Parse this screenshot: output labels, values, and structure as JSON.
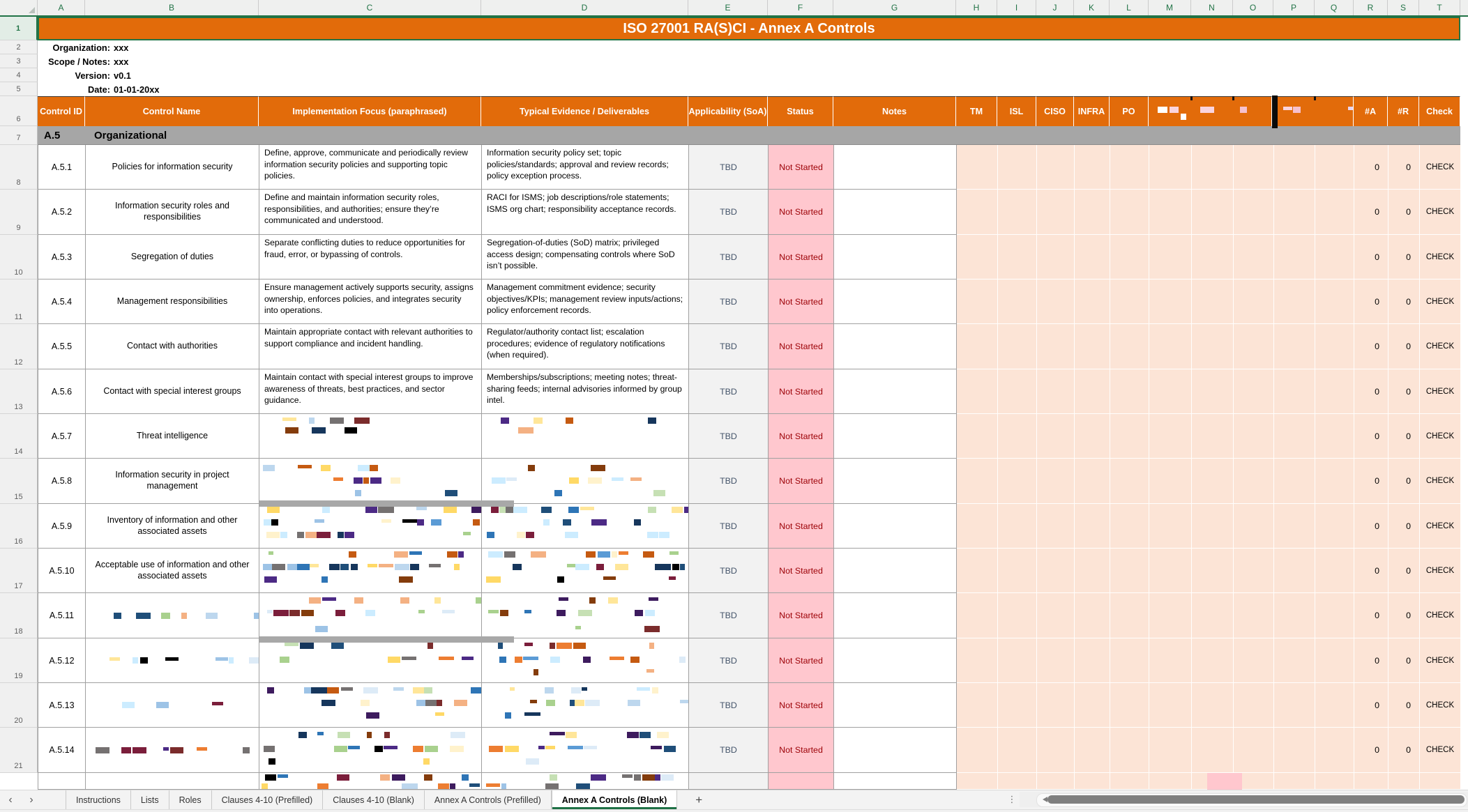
{
  "sheet": {
    "title": "ISO 27001 RA(S)CI - Annex A Controls",
    "column_letters": [
      "A",
      "B",
      "C",
      "D",
      "E",
      "F",
      "G",
      "H",
      "I",
      "J",
      "K",
      "L",
      "M",
      "N",
      "O",
      "P",
      "Q",
      "R",
      "S",
      "T"
    ],
    "row_numbers": [
      1,
      2,
      3,
      4,
      5,
      6,
      7,
      8,
      9,
      10,
      11,
      12,
      13,
      14,
      15,
      16,
      17,
      18,
      19,
      20,
      21
    ]
  },
  "meta": [
    {
      "label": "Organization:",
      "value": "xxx"
    },
    {
      "label": "Scope / Notes:",
      "value": "xxx"
    },
    {
      "label": "Version:",
      "value": "v0.1"
    },
    {
      "label": "Date:",
      "value": "01-01-20xx"
    }
  ],
  "table": {
    "headers": [
      {
        "key": "A",
        "label": "Control ID"
      },
      {
        "key": "B",
        "label": "Control Name"
      },
      {
        "key": "C",
        "label": "Implementation Focus (paraphrased)"
      },
      {
        "key": "D",
        "label": "Typical Evidence / Deliverables"
      },
      {
        "key": "E",
        "label": "Applicability (SoA)"
      },
      {
        "key": "F",
        "label": "Status"
      },
      {
        "key": "G",
        "label": "Notes"
      },
      {
        "key": "TM",
        "label": "TM"
      },
      {
        "key": "ISL",
        "label": "ISL"
      },
      {
        "key": "CISO",
        "label": "CISO"
      },
      {
        "key": "INFRA",
        "label": "INFRA"
      },
      {
        "key": "PO",
        "label": "PO"
      },
      {
        "key": "G1",
        "label": "",
        "corrupted": true
      },
      {
        "key": "G2",
        "label": "",
        "corrupted": true
      },
      {
        "key": "R",
        "label": "#A"
      },
      {
        "key": "S",
        "label": "#R"
      },
      {
        "key": "T",
        "label": "Check"
      }
    ],
    "section": {
      "id": "A.5",
      "name": "Organizational"
    },
    "row_defaults": {
      "soa": "TBD",
      "status": "Not Started",
      "notes": "",
      "count_a": "0",
      "count_r": "0",
      "check": "CHECK"
    },
    "controls": [
      {
        "id": "A.5.1",
        "name": "Policies for information security",
        "focus": "Define, approve, communicate and periodically review information security policies and supporting topic policies.",
        "evidence": "Information security policy set; topic policies/standards; approval and review records; policy exception process."
      },
      {
        "id": "A.5.2",
        "name": "Information security roles and responsibilities",
        "focus": "Define and maintain information security roles, responsibilities, and authorities; ensure they’re communicated and understood.",
        "evidence": "RACI for ISMS; job descriptions/role statements; ISMS org chart; responsibility acceptance records."
      },
      {
        "id": "A.5.3",
        "name": "Segregation of duties",
        "focus": "Separate conflicting duties to reduce opportunities for fraud, error, or bypassing of controls.",
        "evidence": "Segregation-of-duties (SoD) matrix; privileged access design; compensating controls where SoD isn’t possible."
      },
      {
        "id": "A.5.4",
        "name": "Management responsibilities",
        "focus": "Ensure management actively supports security, assigns ownership, enforces policies, and integrates security into operations.",
        "evidence": "Management commitment evidence; security objectives/KPIs; management review inputs/actions; policy enforcement records."
      },
      {
        "id": "A.5.5",
        "name": "Contact with authorities",
        "focus": "Maintain appropriate contact with relevant authorities to support compliance and incident handling.",
        "evidence": "Regulator/authority contact list; escalation procedures; evidence of regulatory notifications (when required)."
      },
      {
        "id": "A.5.6",
        "name": "Contact with special interest groups",
        "focus": "Maintain contact with special interest groups to improve awareness of threats, best practices, and sector guidance.",
        "evidence": "Memberships/subscriptions; meeting notes; threat-sharing feeds; internal advisories informed by group intel."
      },
      {
        "id": "A.5.7",
        "name": "Threat intelligence",
        "focus_corrupted": true,
        "evidence_corrupted": true
      },
      {
        "id": "A.5.8",
        "name": "Information security in project management",
        "focus_corrupted": true,
        "evidence_corrupted": true
      },
      {
        "id": "A.5.9",
        "name": "Inventory of information and other associated assets",
        "focus_corrupted": true,
        "evidence_corrupted": true
      },
      {
        "id": "A.5.10",
        "name": "Acceptable use of information and other associated assets",
        "focus_corrupted": true,
        "evidence_corrupted": true
      },
      {
        "id": "A.5.11",
        "name_corrupted": true,
        "focus_corrupted": true,
        "evidence_corrupted": true
      },
      {
        "id": "A.5.12",
        "name_corrupted": true,
        "focus_corrupted": true,
        "evidence_corrupted": true
      },
      {
        "id": "A.5.13",
        "name_corrupted": true,
        "focus_corrupted": true,
        "evidence_corrupted": true
      },
      {
        "id": "A.5.14",
        "name_corrupted": true,
        "focus_corrupted": true,
        "evidence_corrupted": true
      }
    ],
    "partial_bottom_row_corrupted": true
  },
  "tabs": {
    "items": [
      {
        "label": "Instructions",
        "active": false
      },
      {
        "label": "Lists",
        "active": false
      },
      {
        "label": "Roles",
        "active": false
      },
      {
        "label": "Clauses 4-10 (Prefilled)",
        "active": false
      },
      {
        "label": "Clauses 4-10 (Blank)",
        "active": false
      },
      {
        "label": "Annex A Controls (Prefilled)",
        "active": false
      },
      {
        "label": "Annex A Controls (Blank)",
        "active": true
      }
    ],
    "add_label": "+",
    "scroll_left_glyph": "‹",
    "scroll_right_glyph": "›",
    "splitter_glyph": "⋮"
  },
  "colors": {
    "header_orange": "#E26B0A",
    "selection_green": "#217346",
    "section_gray": "#A6A6A6",
    "status_bg": "#FFC7CE",
    "status_text": "#9C0006",
    "soa_bg": "#F2F2F2",
    "soa_text": "#44546A",
    "role_bg": "#FCE4D6",
    "grid_border": "#A0A0A0"
  },
  "glitch": {
    "noise_palette": [
      "#16365C",
      "#1F4E79",
      "#2E75B6",
      "#5B9BD5",
      "#9DC3E6",
      "#BDD7EE",
      "#CCECFF",
      "#DDEBF7",
      "#FFF2CC",
      "#FFE699",
      "#FFD966",
      "#ED7D31",
      "#F4B183",
      "#C55A11",
      "#843C0C",
      "#7B2C2C",
      "#7B1E3B",
      "#4C2A85",
      "#3D1B5E",
      "#000000",
      "#C6E0B4",
      "#A9D18E",
      "#757171"
    ],
    "header_noise_palette": [
      "#FFFFFF",
      "#FAD4DE",
      "#F6C1CE",
      "#E8D5F2",
      "#FBE3D6",
      "#F9C6A8"
    ],
    "body_noise_rows": [
      14,
      15,
      16,
      17,
      18,
      19,
      20,
      21
    ],
    "name_noise_rows": [
      18,
      19,
      20,
      21
    ],
    "gray_bar_color": "#A8A8A8",
    "black_bar_color": "#0A0A0A"
  }
}
